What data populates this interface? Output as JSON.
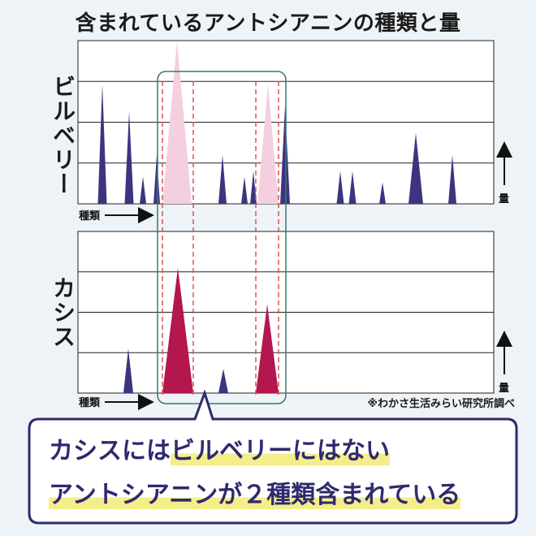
{
  "title": "含まれているアントシアニンの種類と量",
  "colors": {
    "bilberry": "#3d3480",
    "cassis_highlight": "#b3174d",
    "bilberry_faded": "#f4cfe0",
    "dash": "#e05050",
    "box": "#3a7a6a",
    "callout_border": "#2e2a6e"
  },
  "chart_data": [
    {
      "type": "area",
      "title": "ビルベリー",
      "xlabel": "種類",
      "ylabel": "量",
      "ylim": [
        0,
        3
      ],
      "grid": true,
      "peaks": [
        {
          "x": 126,
          "y": 2.2,
          "w": 11,
          "style": "normal"
        },
        {
          "x": 159,
          "y": 1.7,
          "w": 11,
          "style": "normal"
        },
        {
          "x": 176,
          "y": 0.5,
          "w": 8,
          "style": "normal"
        },
        {
          "x": 193,
          "y": 0.9,
          "w": 8,
          "style": "normal"
        },
        {
          "x": 218,
          "y": 3.0,
          "w": 36,
          "style": "faded"
        },
        {
          "x": 274,
          "y": 0.9,
          "w": 10,
          "style": "normal"
        },
        {
          "x": 301,
          "y": 0.5,
          "w": 8,
          "style": "normal"
        },
        {
          "x": 312,
          "y": 0.6,
          "w": 8,
          "style": "normal"
        },
        {
          "x": 330,
          "y": 2.2,
          "w": 26,
          "style": "faded"
        },
        {
          "x": 351,
          "y": 1.8,
          "w": 12,
          "style": "normal"
        },
        {
          "x": 419,
          "y": 0.6,
          "w": 9,
          "style": "normal"
        },
        {
          "x": 434,
          "y": 0.6,
          "w": 9,
          "style": "normal"
        },
        {
          "x": 471,
          "y": 0.4,
          "w": 8,
          "style": "normal"
        },
        {
          "x": 512,
          "y": 1.3,
          "w": 18,
          "style": "normal"
        },
        {
          "x": 557,
          "y": 0.9,
          "w": 10,
          "style": "normal"
        }
      ]
    },
    {
      "type": "area",
      "title": "カシス",
      "xlabel": "種類",
      "ylabel": "量",
      "ylim": [
        0,
        4
      ],
      "grid": true,
      "peaks": [
        {
          "x": 158,
          "y": 1.1,
          "w": 12,
          "style": "normal"
        },
        {
          "x": 219,
          "y": 3.1,
          "w": 38,
          "style": "highlight"
        },
        {
          "x": 275,
          "y": 0.6,
          "w": 12,
          "style": "normal"
        },
        {
          "x": 329,
          "y": 2.2,
          "w": 28,
          "style": "highlight"
        }
      ]
    }
  ],
  "note": "※わかさ生活みらい研究所調べ",
  "callout": {
    "line1_a": "カシスには",
    "line1_b": "ビルベリーにはない",
    "line2": "アントシアニンが２種類含まれている"
  }
}
